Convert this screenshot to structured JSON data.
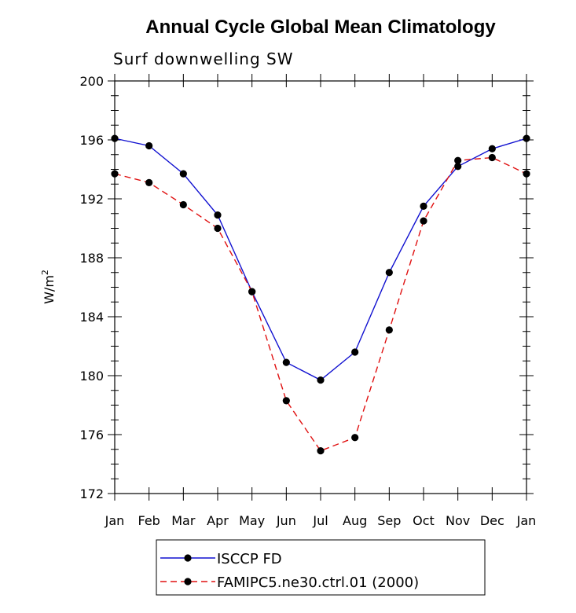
{
  "chart_data": {
    "type": "line",
    "title": "Annual Cycle Global Mean Climatology",
    "subtitle": "Surf downwelling SW",
    "ylabel_base": "W/m",
    "ylabel_sup": "2",
    "xlabel": "",
    "categories": [
      "Jan",
      "Feb",
      "Mar",
      "Apr",
      "May",
      "Jun",
      "Jul",
      "Aug",
      "Sep",
      "Oct",
      "Nov",
      "Dec",
      "Jan"
    ],
    "yticks": [
      "172",
      "176",
      "180",
      "184",
      "188",
      "192",
      "196",
      "200"
    ],
    "ylim": [
      172,
      200
    ],
    "grid": false,
    "legend_position": "bottom",
    "series": [
      {
        "name": "ISCCP FD",
        "color": "#1010d0",
        "dash": "solid",
        "values": [
          196.1,
          195.6,
          193.7,
          190.9,
          185.7,
          180.9,
          179.7,
          181.6,
          187.0,
          191.5,
          194.2,
          195.4,
          196.1
        ]
      },
      {
        "name": "FAMIPC5.ne30.ctrl.01 (2000)",
        "color": "#e01010",
        "dash": "dashed",
        "values": [
          193.7,
          193.1,
          191.6,
          190.0,
          185.7,
          178.3,
          174.9,
          175.8,
          183.1,
          190.5,
          194.6,
          194.8,
          193.7
        ]
      }
    ]
  }
}
